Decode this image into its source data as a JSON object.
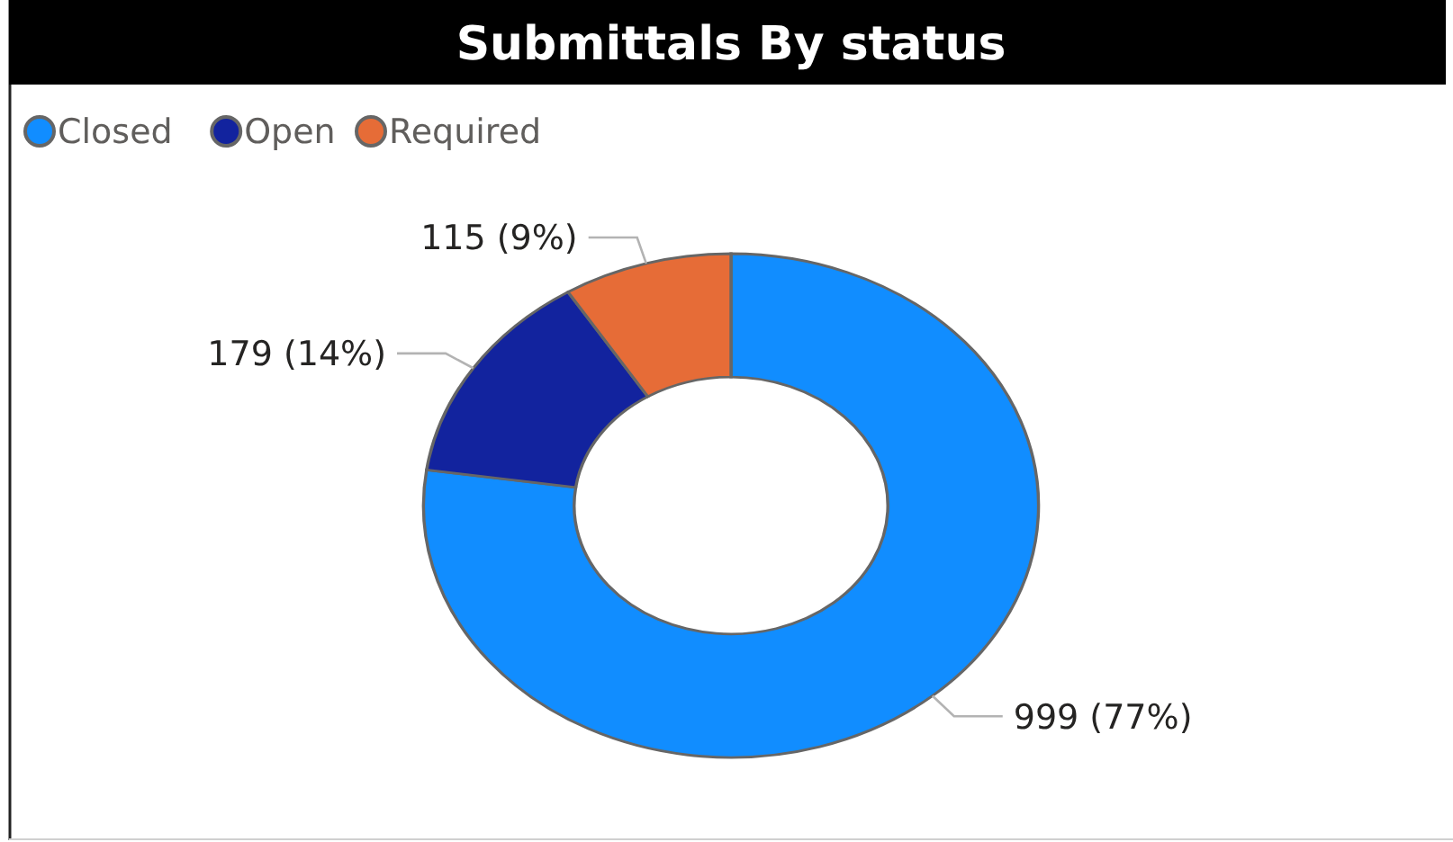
{
  "chart_data": {
    "type": "donut",
    "title": "Submittals By status",
    "categories": [
      "Closed",
      "Open",
      "Required"
    ],
    "values": [
      999,
      179,
      115
    ],
    "colors": [
      "#118dff",
      "#12239e",
      "#e66c37"
    ],
    "value_labels": [
      "999 (77%)",
      "179 (14%)",
      "115 (9%)"
    ],
    "legend": "top left"
  }
}
